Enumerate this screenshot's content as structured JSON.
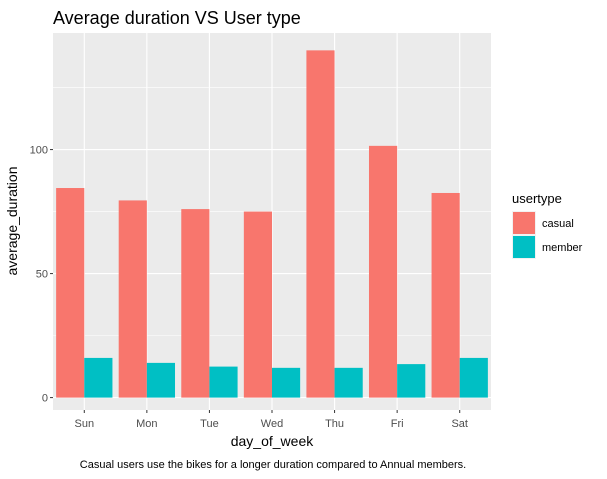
{
  "chart_data": {
    "type": "bar",
    "title": "Average duration VS User type",
    "xlabel": "day_of_week",
    "ylabel": "average_duration",
    "caption": "Casual users use the bikes for a longer duration compared to Annual members.",
    "categories": [
      "Sun",
      "Mon",
      "Tue",
      "Wed",
      "Thu",
      "Fri",
      "Sat"
    ],
    "series": [
      {
        "name": "casual",
        "color": "#F8766D",
        "values": [
          84.5,
          79.5,
          76,
          75,
          140,
          101.5,
          82.5
        ]
      },
      {
        "name": "member",
        "color": "#00BFC4",
        "values": [
          16,
          14,
          12.5,
          12,
          12,
          13.5,
          16
        ]
      }
    ],
    "ylim": [
      -5,
      147
    ],
    "yticks": [
      0,
      50,
      100
    ],
    "legend_title": "usertype",
    "legend_position": "right",
    "grid": true,
    "panel_background": "#EBEBEB"
  }
}
